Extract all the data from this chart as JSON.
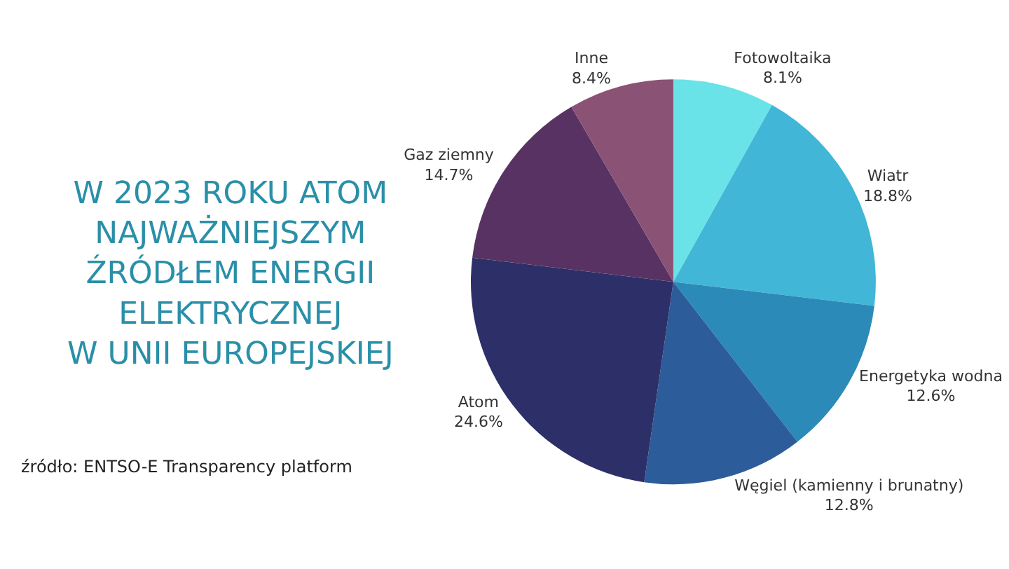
{
  "chart_data": {
    "type": "pie",
    "title": "W 2023 ROKU ATOM\nNAJWAŻNIEJSZYM\nŹRÓDŁEM ENERGII\nELEKTRYCZNEJ\nW UNII EUROPEJSKIEJ",
    "categories": [
      "Fotowoltaika",
      "Wiatr",
      "Energetyka wodna",
      "Węgiel (kamienny i brunatny)",
      "Atom",
      "Gaz ziemny",
      "Inne"
    ],
    "values": [
      8.1,
      18.8,
      12.6,
      12.8,
      24.6,
      14.7,
      8.4
    ],
    "colors": [
      "#6ae3e8",
      "#42b6d6",
      "#2b8ab8",
      "#2c5c99",
      "#2d3068",
      "#583263",
      "#8a5275"
    ],
    "value_labels": [
      "8.1%",
      "18.8%",
      "12.6%",
      "12.8%",
      "24.6%",
      "14.7%",
      "8.4%"
    ],
    "legend": false,
    "annotations": [
      "źródło: ENTSO-E Transparency platform"
    ]
  }
}
